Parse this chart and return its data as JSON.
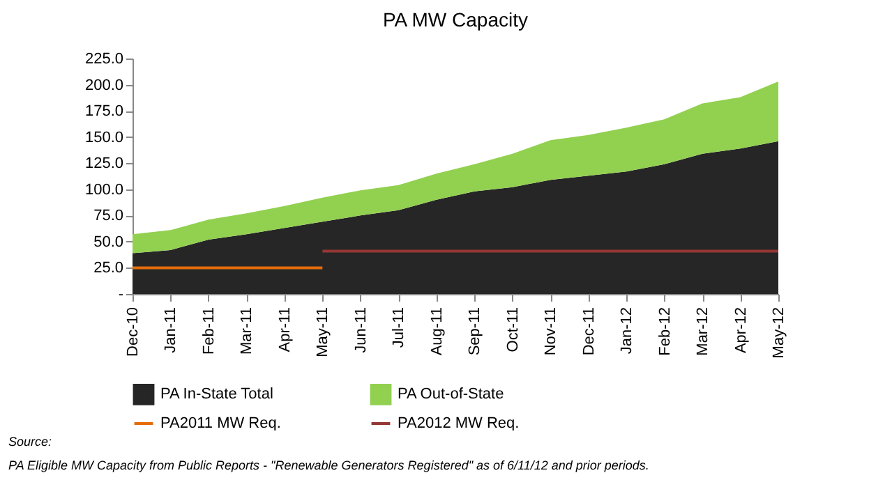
{
  "chart_data": {
    "type": "area",
    "title": "PA MW Capacity",
    "stacked": true,
    "grid": false,
    "legend": "bottom",
    "categories": [
      "Dec-10",
      "Jan-11",
      "Feb-11",
      "Mar-11",
      "Apr-11",
      "May-11",
      "Jun-11",
      "Jul-11",
      "Aug-11",
      "Sep-11",
      "Oct-11",
      "Nov-11",
      "Dec-11",
      "Jan-12",
      "Feb-12",
      "Mar-12",
      "Apr-12",
      "May-12"
    ],
    "ylim": [
      0,
      225
    ],
    "yticks": [
      {
        "value": 0,
        "label": "-"
      },
      {
        "value": 25,
        "label": "25.0"
      },
      {
        "value": 50,
        "label": "50.0"
      },
      {
        "value": 75,
        "label": "75.0"
      },
      {
        "value": 100,
        "label": "100.0"
      },
      {
        "value": 125,
        "label": "125.0"
      },
      {
        "value": 150,
        "label": "150.0"
      },
      {
        "value": 175,
        "label": "175.0"
      },
      {
        "value": 200,
        "label": "200.0"
      },
      {
        "value": 225,
        "label": "225.0"
      }
    ],
    "series": [
      {
        "name": "PA In-State Total",
        "color": "#262626",
        "values": [
          39,
          42,
          52,
          57,
          63,
          69,
          75,
          80,
          90,
          98,
          102,
          109,
          113,
          117,
          124,
          134,
          139,
          146
        ]
      },
      {
        "name": "PA Out-of-State",
        "color": "#92d050",
        "values": [
          18,
          19,
          19,
          20,
          21,
          23,
          24,
          24,
          25,
          26,
          32,
          38,
          39,
          42,
          43,
          48,
          49,
          57
        ]
      },
      {
        "name": "PA2011 MW Req.",
        "type": "line",
        "color": "#e46c0a",
        "values": [
          25,
          25,
          25,
          25,
          25,
          25,
          null,
          null,
          null,
          null,
          null,
          null,
          null,
          null,
          null,
          null,
          null,
          null
        ]
      },
      {
        "name": "PA2012 MW Req.",
        "type": "line",
        "color": "#953735",
        "values": [
          null,
          null,
          null,
          null,
          null,
          41,
          41,
          41,
          41,
          41,
          41,
          41,
          41,
          41,
          41,
          41,
          41,
          41
        ]
      }
    ],
    "annotations": [
      "Source:",
      "PA Eligible MW Capacity from Public Reports - \"Renewable Generators Registered\" as of 6/11/12 and prior periods."
    ]
  }
}
